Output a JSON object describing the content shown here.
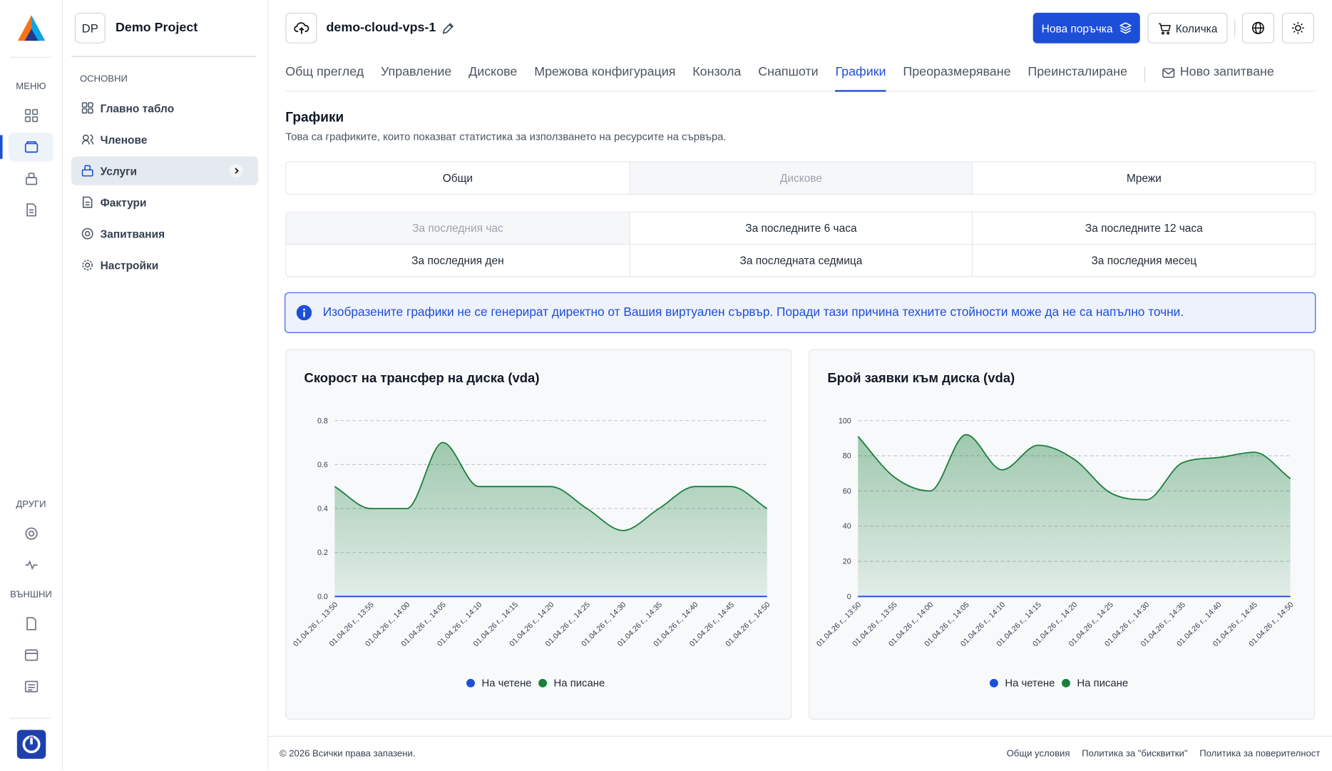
{
  "sidebar": {
    "menu_label": "МЕНЮ",
    "other_label": "ДРУГИ",
    "external_label": "ВЪНШНИ",
    "project": {
      "initials": "DP",
      "name": "Demo Project"
    },
    "section": "ОСНОВНИ",
    "menu": [
      "Главно табло",
      "Членове",
      "Услуги",
      "Фактури",
      "Запитвания",
      "Настройки"
    ]
  },
  "header": {
    "server": "demo-cloud-vps-1",
    "new_order": "Нова поръчка",
    "cart": "Количка"
  },
  "tabs": [
    "Общ преглед",
    "Управление",
    "Дискове",
    "Мрежова конфигурация",
    "Конзола",
    "Снапшоти",
    "Графики",
    "Преоразмеряване",
    "Преинсталиране",
    "Ново запитване"
  ],
  "section": {
    "title": "Графики",
    "description": "Това са графиките, които показват статистика за използването на ресурсите на сървъра."
  },
  "metric_tabs": [
    "Общи",
    "Дискове",
    "Мрежи"
  ],
  "periods": [
    "За последния час",
    "За последните 6 часа",
    "За последните 12 часа",
    "За последния ден",
    "За последната седмица",
    "За последния месец"
  ],
  "notice": "Изобразените графики не се генерират директно от Вашия виртуален сървър. Поради тази причина техните стойности може да не са напълно точни.",
  "chart_data": [
    {
      "type": "area",
      "title": "Скорост на трансфер на диска (vda)",
      "categories": [
        "01.04.26 г., 13:50",
        "01.04.26 г., 13:55",
        "01.04.26 г., 14:00",
        "01.04.26 г., 14:05",
        "01.04.26 г., 14:10",
        "01.04.26 г., 14:15",
        "01.04.26 г., 14:20",
        "01.04.26 г., 14:25",
        "01.04.26 г., 14:30",
        "01.04.26 г., 14:35",
        "01.04.26 г., 14:40",
        "01.04.26 г., 14:45",
        "01.04.26 г., 14:50"
      ],
      "series": [
        {
          "name": "На четене",
          "color": "#1d4ed8",
          "values": [
            0,
            0,
            0,
            0,
            0,
            0,
            0,
            0,
            0,
            0,
            0,
            0,
            0
          ]
        },
        {
          "name": "На писане",
          "color": "#1a7f3c",
          "values": [
            0.5,
            0.4,
            0.4,
            0.7,
            0.5,
            0.5,
            0.5,
            0.4,
            0.3,
            0.4,
            0.5,
            0.5,
            0.4
          ]
        }
      ],
      "ylim": [
        0,
        0.8
      ],
      "yticks": [
        {
          "value": 0,
          "label": "0.0"
        },
        0.2,
        0.4,
        0.6,
        0.8
      ],
      "grid": true
    },
    {
      "type": "area",
      "title": "Брой заявки към диска (vda)",
      "categories": [
        "01.04.26 г., 13:50",
        "01.04.26 г., 13:55",
        "01.04.26 г., 14:00",
        "01.04.26 г., 14:05",
        "01.04.26 г., 14:10",
        "01.04.26 г., 14:15",
        "01.04.26 г., 14:20",
        "01.04.26 г., 14:25",
        "01.04.26 г., 14:30",
        "01.04.26 г., 14:35",
        "01.04.26 г., 14:40",
        "01.04.26 г., 14:45",
        "01.04.26 г., 14:50"
      ],
      "series": [
        {
          "name": "На четене",
          "color": "#1d4ed8",
          "values": [
            0,
            0,
            0,
            0,
            0,
            0,
            0,
            0,
            0,
            0,
            0,
            0,
            0
          ]
        },
        {
          "name": "На писане",
          "color": "#1a7f3c",
          "values": [
            91,
            68,
            60,
            92,
            72,
            86,
            78,
            59,
            55,
            76,
            79,
            82,
            67
          ]
        }
      ],
      "ylim": [
        0,
        100
      ],
      "yticks": [
        0,
        20,
        40,
        60,
        80,
        100
      ],
      "grid": true
    }
  ],
  "footer": {
    "copyright": "© 2026 Всички права запазени.",
    "links": [
      "Общи условия",
      "Политика за \"бисквитки\"",
      "Политика за поверителност"
    ]
  }
}
